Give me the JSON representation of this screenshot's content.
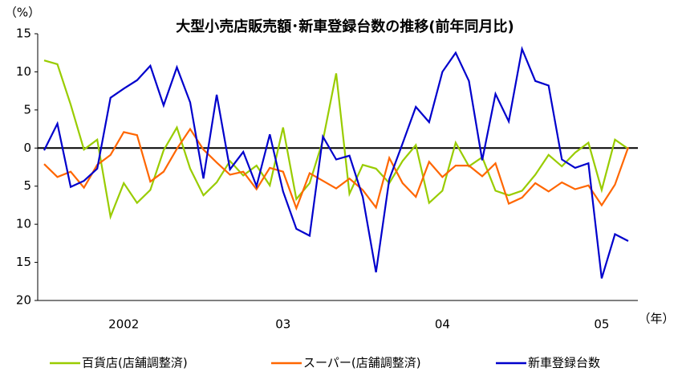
{
  "chart_data": {
    "type": "line",
    "title": "大型小売店販売額･新車登録台数の推移(前年同月比)",
    "y_unit": "（%）",
    "x_unit": "（年）",
    "categories": [
      null,
      null,
      null,
      null,
      null,
      null,
      "2002",
      null,
      null,
      null,
      null,
      null,
      null,
      null,
      null,
      null,
      null,
      null,
      "03",
      null,
      null,
      null,
      null,
      null,
      null,
      null,
      null,
      null,
      null,
      null,
      "04",
      null,
      null,
      null,
      null,
      null,
      null,
      null,
      null,
      null,
      null,
      null,
      "05",
      null,
      null
    ],
    "series": [
      {
        "name": "百貨店(店舗調整済)",
        "color": "#99cc00",
        "values": [
          11.5,
          11.0,
          5.7,
          -0.2,
          1.1,
          -9.0,
          -4.6,
          -7.2,
          -5.5,
          -0.3,
          2.7,
          -2.7,
          -6.2,
          -4.5,
          -1.7,
          -3.6,
          -2.3,
          -4.9,
          2.7,
          -6.7,
          -4.6,
          1.0,
          9.8,
          -6.0,
          -2.2,
          -2.7,
          -4.6,
          -1.7,
          0.4,
          -7.2,
          -5.6,
          0.7,
          -2.4,
          -1.2,
          -5.6,
          -6.2,
          -5.6,
          -3.5,
          -0.9,
          -2.4,
          -0.6,
          0.7,
          -5.5,
          1.1,
          -0.1
        ]
      },
      {
        "name": "スーパー(店舗調整済)",
        "color": "#ff6600",
        "values": [
          -2.1,
          -3.8,
          -3.1,
          -5.2,
          -2.2,
          -0.9,
          2.1,
          1.7,
          -4.4,
          -3.1,
          -0.1,
          2.5,
          -0.2,
          -1.9,
          -3.5,
          -3.1,
          -5.4,
          -2.6,
          -3.1,
          -7.9,
          -3.3,
          -4.3,
          -5.3,
          -4.0,
          -5.5,
          -7.8,
          -1.3,
          -4.6,
          -6.4,
          -1.8,
          -3.8,
          -2.3,
          -2.3,
          -3.7,
          -2.0,
          -7.3,
          -6.5,
          -4.6,
          -5.7,
          -4.5,
          -5.4,
          -4.9,
          -7.5,
          -4.8,
          0.1
        ]
      },
      {
        "name": "新車登録台数",
        "color": "#0000cc",
        "values": [
          -0.3,
          3.2,
          -5.1,
          -4.3,
          -2.7,
          6.6,
          7.8,
          8.9,
          10.8,
          5.6,
          10.6,
          6.0,
          -4.0,
          7.0,
          -2.8,
          -0.5,
          -5.0,
          1.8,
          -5.7,
          -10.6,
          -11.5,
          1.5,
          -1.5,
          -1.0,
          -6.4,
          -16.3,
          -4.1,
          0.6,
          5.4,
          3.4,
          10.0,
          12.5,
          8.8,
          -1.6,
          7.1,
          3.5,
          13.0,
          8.8,
          8.2,
          -1.5,
          -2.6,
          -2.0,
          -17.1,
          -11.3,
          -12.2
        ]
      }
    ],
    "ylim": [
      -20,
      15
    ],
    "yticks": [
      {
        "value": -20,
        "label": "20"
      },
      {
        "value": -15,
        "label": "15"
      },
      {
        "value": -10,
        "label": "10"
      },
      {
        "value": -5,
        "label": "5"
      },
      0,
      5,
      10,
      15
    ],
    "zero_line": true
  }
}
